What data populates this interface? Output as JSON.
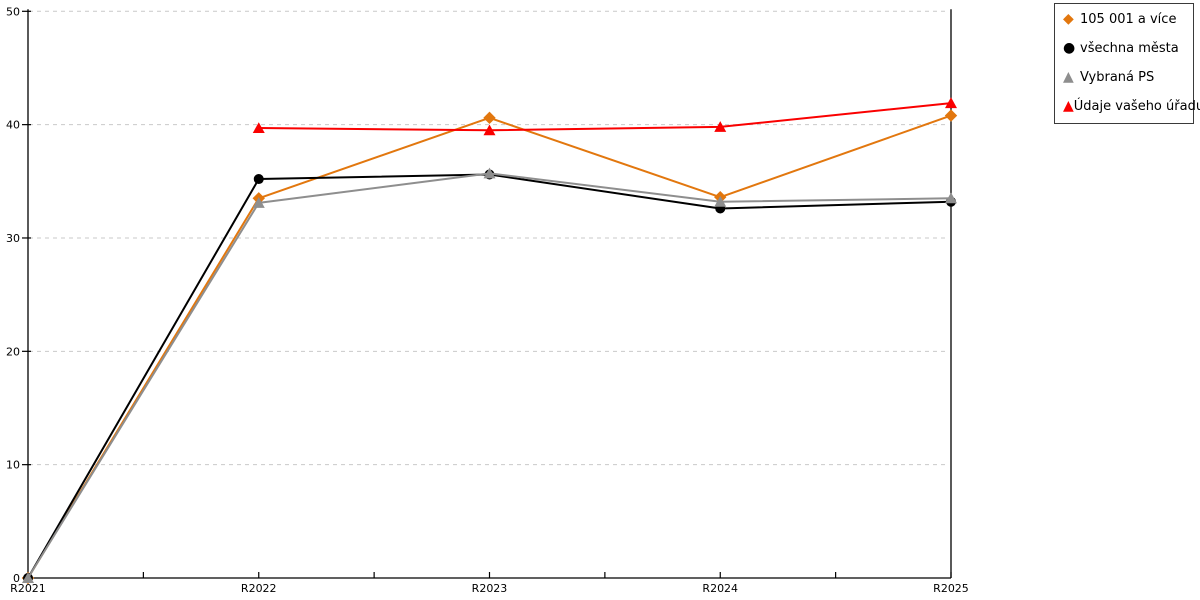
{
  "chart_data": {
    "type": "line",
    "title": "",
    "xlabel": "",
    "ylabel": "",
    "categories": [
      "R2021",
      "R2022",
      "R2023",
      "R2024",
      "R2025"
    ],
    "y_ticks": [
      "0",
      "10",
      "20",
      "30",
      "40",
      "50"
    ],
    "ylim": [
      0,
      50
    ],
    "grid": "horizontal-dashed",
    "gridline_color": "#c9c9c9",
    "axis_color": "#000000",
    "legend_position": "top-right",
    "series": [
      {
        "name": "105 001 a více",
        "marker": "diamond",
        "color": "#e2770e",
        "values": [
          0,
          33.5,
          40.6,
          33.6,
          40.8
        ]
      },
      {
        "name": "všechna města",
        "marker": "circle",
        "color": "#000000",
        "values": [
          0,
          35.2,
          35.6,
          32.6,
          33.2
        ]
      },
      {
        "name": "Vybraná PS",
        "marker": "triangle",
        "color": "#8e8e8e",
        "values": [
          0,
          33.1,
          35.7,
          33.2,
          33.5
        ]
      },
      {
        "name": "Údaje vašeho úřadu",
        "marker": "triangle",
        "color": "#fa0000",
        "values": [
          null,
          39.7,
          39.5,
          39.8,
          41.9
        ]
      }
    ]
  }
}
